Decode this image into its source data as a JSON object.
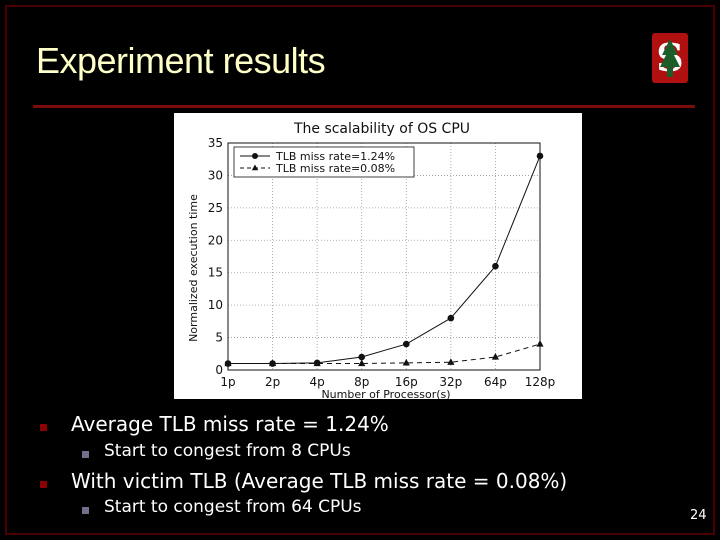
{
  "slide": {
    "title": "Experiment results",
    "page_number": "24",
    "logo_letter": "S",
    "accent_color": "#7a0c0c"
  },
  "bullets": [
    {
      "text": "Average TLB miss rate = 1.24%",
      "sub": [
        "Start to congest from 8 CPUs"
      ]
    },
    {
      "text": "With victim TLB (Average TLB miss rate = 0.08%)",
      "sub": [
        "Start to congest from 64 CPUs"
      ]
    }
  ],
  "chart_data": {
    "type": "line",
    "title": "The scalability of OS CPU",
    "xlabel": "Number of Processor(s)",
    "ylabel": "Normalized execution time",
    "categories": [
      "1p",
      "2p",
      "4p",
      "8p",
      "16p",
      "32p",
      "64p",
      "128p"
    ],
    "ylim": [
      0,
      35
    ],
    "yticks": [
      0,
      5,
      10,
      15,
      20,
      25,
      30,
      35
    ],
    "grid": true,
    "legend": "top-left",
    "series": [
      {
        "name": "TLB miss rate=1.24%",
        "marker": "circle",
        "linestyle": "solid",
        "values": [
          1.0,
          1.0,
          1.1,
          2.0,
          4.0,
          8.0,
          16.0,
          33.0
        ]
      },
      {
        "name": "TLB miss rate=0.08%",
        "marker": "triangle",
        "linestyle": "dashed",
        "values": [
          1.0,
          1.0,
          1.0,
          1.0,
          1.1,
          1.2,
          2.0,
          4.0
        ]
      }
    ]
  }
}
